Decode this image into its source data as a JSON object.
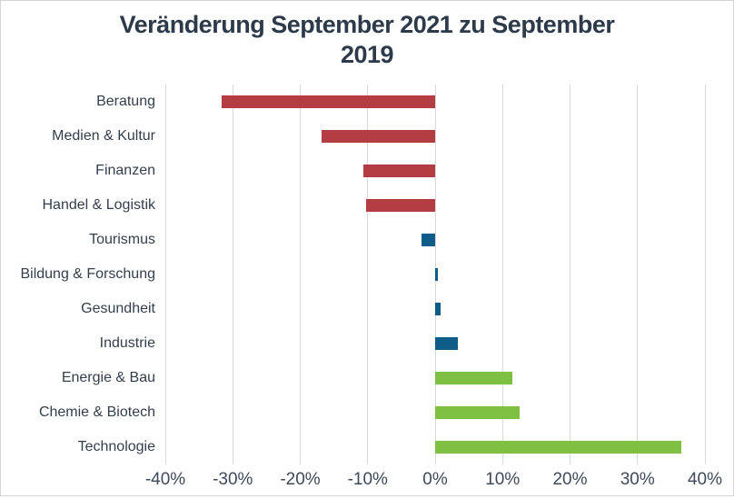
{
  "title": {
    "lines": [
      "Veränderung September 2021 zu September",
      "2019"
    ]
  },
  "colors": {
    "negative_red": "#b43c43",
    "neutral_blue": "#0e5d89",
    "positive_green": "#7ec142",
    "gridline": "#d9d9d9",
    "title_text": "#2d3a4a",
    "label_text": "#333f4d",
    "tick_text": "#3e4a59"
  },
  "chart_data": {
    "type": "bar",
    "orientation": "horizontal",
    "title": "Veränderung September 2021 zu September 2019",
    "xlabel": "",
    "ylabel": "",
    "xlim": [
      -40,
      40
    ],
    "grid": "vertical",
    "legend": "none",
    "unit": "%",
    "categories": [
      "Beratung",
      "Medien & Kultur",
      "Finanzen",
      "Handel & Logistik",
      "Tourismus",
      "Bildung & Forschung",
      "Gesundheit",
      "Industrie",
      "Energie & Bau",
      "Chemie & Biotech",
      "Technologie"
    ],
    "values": [
      -31.7,
      -16.8,
      -10.7,
      -10.2,
      -2.0,
      0.4,
      0.8,
      3.4,
      11.4,
      12.5,
      36.5
    ],
    "bar_colors": [
      "#b43c43",
      "#b43c43",
      "#b43c43",
      "#b43c43",
      "#0e5d89",
      "#0e5d89",
      "#0e5d89",
      "#0e5d89",
      "#7ec142",
      "#7ec142",
      "#7ec142"
    ],
    "x_ticks": [
      {
        "value": -40,
        "label": "-40%"
      },
      {
        "value": -30,
        "label": "-30%"
      },
      {
        "value": -20,
        "label": "-20%"
      },
      {
        "value": -10,
        "label": "-10%"
      },
      {
        "value": 0,
        "label": "0%"
      },
      {
        "value": 10,
        "label": "10%"
      },
      {
        "value": 20,
        "label": "20%"
      },
      {
        "value": 30,
        "label": "30%"
      },
      {
        "value": 40,
        "label": "40%"
      }
    ]
  }
}
